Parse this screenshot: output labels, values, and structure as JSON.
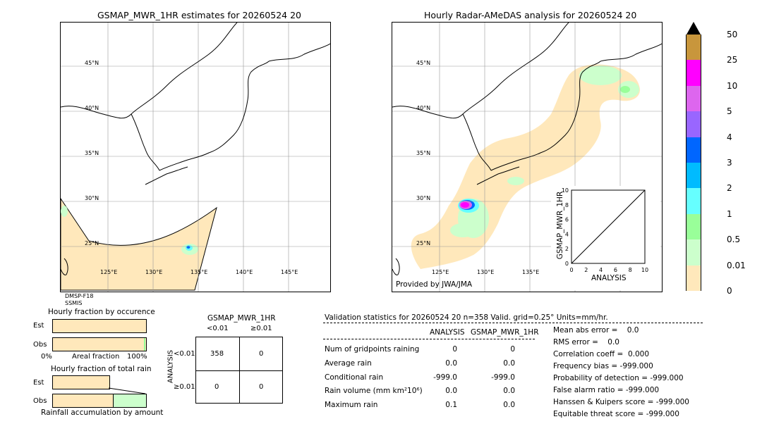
{
  "left_map": {
    "title": "GSMAP_MWR_1HR estimates for 20260524 20",
    "lat_labels": [
      "45°N",
      "40°N",
      "35°N",
      "30°N",
      "25°N"
    ],
    "lon_labels": [
      "125°E",
      "130°E",
      "135°E",
      "140°E",
      "145°E"
    ],
    "source_line1": "DMSP-F18",
    "source_line2": "SSMIS"
  },
  "right_map": {
    "title": "Hourly Radar-AMeDAS analysis for 20260524 20",
    "lat_labels": [
      "45°N",
      "40°N",
      "35°N",
      "30°N",
      "25°N"
    ],
    "lon_labels": [
      "125°E",
      "130°E",
      "135°E"
    ],
    "provider": "Provided by JWA/JMA"
  },
  "colorbar": {
    "labels": [
      "50",
      "25",
      "10",
      "5",
      "4",
      "3",
      "2",
      "1",
      "0.5",
      "0.01",
      "0"
    ],
    "colors": [
      "#c8963c",
      "#ff00ff",
      "#dd66ee",
      "#9966ff",
      "#0066ff",
      "#00bbff",
      "#66ffff",
      "#99ff99",
      "#ccffcc",
      "#ffe8bb"
    ]
  },
  "scatter": {
    "xlabel": "ANALYSIS",
    "ylabel": "GSMAP_MWR_1HR",
    "ticks": [
      "0",
      "2",
      "4",
      "6",
      "8",
      "10"
    ]
  },
  "fraction_occurrence": {
    "title": "Hourly fraction by occurence",
    "row1": "Est",
    "row2": "Obs",
    "axis_left": "0%",
    "axis_mid": "Areal fraction",
    "axis_right": "100%"
  },
  "fraction_total": {
    "title": "Hourly fraction of total rain",
    "row1": "Est",
    "row2": "Obs",
    "caption": "Rainfall accumulation by amount"
  },
  "contingency": {
    "title": "GSMAP_MWR_1HR",
    "col1": "<0.01",
    "col2": "≥0.01",
    "row_axis": "ANALYSIS",
    "row1": "<0.01",
    "row2": "≥0.01",
    "cells": [
      "358",
      "0",
      "0",
      "0"
    ]
  },
  "validation": {
    "header": "Validation statistics for 20260524 20  n=358 Valid. grid=0.25° Units=mm/hr.",
    "col_analysis": "ANALYSIS",
    "col_gsmap": "GSMAP_MWR_1HR",
    "rows": [
      {
        "label": "Num of gridpoints raining",
        "a": "0",
        "g": "0"
      },
      {
        "label": "Average rain",
        "a": "0.0",
        "g": "0.0"
      },
      {
        "label": "Conditional rain",
        "a": "-999.0",
        "g": "-999.0"
      },
      {
        "label": "Rain volume (mm km²10⁶)",
        "a": "0.0",
        "g": "0.0"
      },
      {
        "label": "Maximum rain",
        "a": "0.1",
        "g": "0.0"
      }
    ],
    "scores": [
      "Mean abs error =    0.0",
      "RMS error =    0.0",
      "Correlation coeff =  0.000",
      "Frequency bias = -999.000",
      "Probability of detection = -999.000",
      "False alarm ratio = -999.000",
      "Hanssen & Kuipers score = -999.000",
      "Equitable threat score = -999.000"
    ]
  },
  "chart_data": {
    "type": "scatter",
    "xlabel": "ANALYSIS",
    "ylabel": "GSMAP_MWR_1HR",
    "xlim": [
      0,
      10
    ],
    "ylim": [
      0,
      10
    ],
    "x_ticks": [
      0,
      2,
      4,
      6,
      8,
      10
    ],
    "y_ticks": [
      0,
      2,
      4,
      6,
      8,
      10
    ],
    "reference_line": [
      [
        0,
        0
      ],
      [
        10,
        10
      ]
    ],
    "points": []
  }
}
